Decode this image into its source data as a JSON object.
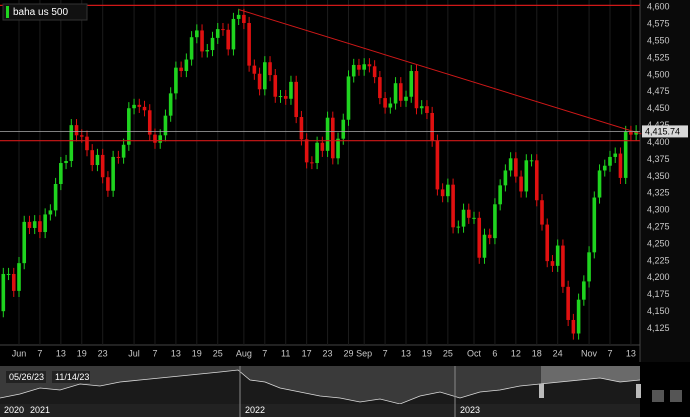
{
  "chart_data": {
    "type": "candlestick",
    "series": [
      {
        "name": "baha us 500",
        "up_color": "#1fd41f",
        "down_color": "#e01010",
        "open": [
          4150,
          4205,
          4205,
          4180,
          4221,
          4282,
          4273,
          4283,
          4267,
          4293,
          4299,
          4338,
          4369,
          4372,
          4425,
          4410,
          4408,
          4388,
          4366,
          4381,
          4348,
          4328,
          4378,
          4377,
          4396,
          4450,
          4455,
          4452,
          4447,
          4411,
          4399,
          4410,
          4439,
          4472,
          4510,
          4505,
          4522,
          4555,
          4565,
          4534,
          4536,
          4554,
          4567,
          4566,
          4537,
          4582,
          4588,
          4576,
          4513,
          4501,
          4478,
          4518,
          4499,
          4467,
          4468,
          4464,
          4489,
          4437,
          4404,
          4370,
          4369,
          4399,
          4387,
          4436,
          4376,
          4405,
          4433,
          4497,
          4514,
          4507,
          4515,
          4512,
          4496,
          4465,
          4451,
          4457,
          4487,
          4461,
          4467,
          4505,
          4450,
          4453,
          4443,
          4402,
          4330,
          4320,
          4337,
          4274,
          4275,
          4300,
          4288,
          4288,
          4229,
          4263,
          4258,
          4308,
          4336,
          4358,
          4376,
          4349,
          4327,
          4373,
          4373,
          4314,
          4278,
          4224,
          4217,
          4247,
          4186,
          4137,
          4117,
          4167,
          4194,
          4237,
          4318,
          4358,
          4365,
          4378,
          4383,
          4347,
          4415,
          4411
        ],
        "high": [
          4214,
          4214,
          4214,
          4230,
          4291,
          4291,
          4292,
          4292,
          4302,
          4308,
          4347,
          4378,
          4381,
          4434,
          4434,
          4419,
          4417,
          4397,
          4390,
          4390,
          4357,
          4387,
          4387,
          4405,
          4459,
          4464,
          4464,
          4461,
          4456,
          4420,
          4419,
          4448,
          4481,
          4519,
          4519,
          4531,
          4564,
          4574,
          4574,
          4545,
          4563,
          4576,
          4576,
          4575,
          4591,
          4597,
          4597,
          4585,
          4522,
          4510,
          4527,
          4527,
          4508,
          4477,
          4477,
          4498,
          4498,
          4446,
          4413,
          4379,
          4408,
          4408,
          4445,
          4445,
          4414,
          4442,
          4506,
          4523,
          4523,
          4524,
          4524,
          4521,
          4505,
          4474,
          4466,
          4496,
          4496,
          4476,
          4514,
          4514,
          4462,
          4462,
          4452,
          4411,
          4339,
          4346,
          4346,
          4284,
          4309,
          4309,
          4297,
          4297,
          4272,
          4272,
          4317,
          4345,
          4367,
          4385,
          4385,
          4358,
          4382,
          4382,
          4382,
          4323,
          4287,
          4233,
          4256,
          4256,
          4195,
          4146,
          4176,
          4203,
          4246,
          4327,
          4367,
          4374,
          4387,
          4392,
          4392,
          4424,
          4424,
          4425
        ],
        "low": [
          4141,
          4196,
          4171,
          4171,
          4212,
          4264,
          4264,
          4258,
          4258,
          4284,
          4290,
          4329,
          4360,
          4363,
          4401,
          4399,
          4379,
          4357,
          4357,
          4339,
          4319,
          4319,
          4368,
          4368,
          4387,
          4441,
          4443,
          4438,
          4402,
          4390,
          4390,
          4401,
          4430,
          4463,
          4496,
          4496,
          4513,
          4546,
          4525,
          4525,
          4527,
          4545,
          4557,
          4528,
          4528,
          4573,
          4567,
          4504,
          4492,
          4469,
          4469,
          4490,
          4458,
          4458,
          4455,
          4455,
          4428,
          4395,
          4361,
          4360,
          4360,
          4378,
          4378,
          4367,
          4367,
          4396,
          4424,
          4488,
          4498,
          4498,
          4503,
          4487,
          4456,
          4442,
          4442,
          4448,
          4452,
          4452,
          4458,
          4441,
          4441,
          4434,
          4393,
          4321,
          4311,
          4311,
          4265,
          4265,
          4266,
          4279,
          4279,
          4220,
          4220,
          4249,
          4249,
          4299,
          4327,
          4349,
          4340,
          4318,
          4318,
          4364,
          4305,
          4269,
          4215,
          4208,
          4208,
          4177,
          4128,
          4108,
          4108,
          4158,
          4185,
          4228,
          4309,
          4349,
          4356,
          4369,
          4338,
          4338,
          4402,
          4402
        ],
        "close": [
          4205,
          4205,
          4180,
          4221,
          4282,
          4273,
          4283,
          4267,
          4293,
          4299,
          4338,
          4369,
          4372,
          4425,
          4410,
          4408,
          4388,
          4366,
          4381,
          4348,
          4328,
          4378,
          4377,
          4396,
          4450,
          4455,
          4452,
          4447,
          4411,
          4399,
          4410,
          4439,
          4472,
          4510,
          4505,
          4522,
          4555,
          4565,
          4534,
          4536,
          4554,
          4567,
          4566,
          4537,
          4582,
          4588,
          4576,
          4513,
          4501,
          4478,
          4518,
          4499,
          4467,
          4468,
          4464,
          4489,
          4437,
          4404,
          4370,
          4369,
          4399,
          4387,
          4436,
          4376,
          4405,
          4433,
          4497,
          4514,
          4507,
          4515,
          4512,
          4496,
          4465,
          4451,
          4457,
          4487,
          4461,
          4467,
          4505,
          4450,
          4453,
          4443,
          4402,
          4330,
          4320,
          4337,
          4274,
          4275,
          4300,
          4288,
          4288,
          4229,
          4263,
          4258,
          4308,
          4336,
          4358,
          4376,
          4349,
          4327,
          4373,
          4373,
          4314,
          4278,
          4224,
          4217,
          4247,
          4186,
          4137,
          4117,
          4167,
          4194,
          4237,
          4318,
          4358,
          4365,
          4378,
          4383,
          4347,
          4415,
          4411,
          4416
        ]
      }
    ],
    "categories": [
      null,
      null,
      null,
      "Jun",
      null,
      null,
      null,
      "7",
      null,
      null,
      null,
      "13",
      null,
      null,
      null,
      "19",
      null,
      null,
      null,
      "23",
      null,
      null,
      null,
      null,
      null,
      "Jul",
      null,
      null,
      null,
      "7",
      null,
      null,
      null,
      "13",
      null,
      null,
      null,
      "19",
      null,
      null,
      null,
      "25",
      null,
      null,
      null,
      null,
      "Aug",
      null,
      null,
      null,
      "7",
      null,
      null,
      null,
      "11",
      null,
      null,
      null,
      "17",
      null,
      null,
      null,
      "23",
      null,
      null,
      null,
      "29",
      null,
      null,
      "Sep",
      null,
      null,
      null,
      "7",
      null,
      null,
      null,
      "13",
      null,
      null,
      null,
      "19",
      null,
      null,
      null,
      "25",
      null,
      null,
      null,
      null,
      "Oct",
      null,
      null,
      null,
      "6",
      null,
      null,
      null,
      "12",
      null,
      null,
      null,
      "18",
      null,
      null,
      null,
      "24",
      null,
      null,
      null,
      null,
      null,
      "Nov",
      null,
      null,
      null,
      "7",
      null,
      null,
      null,
      "13",
      null
    ],
    "ylim": [
      4100,
      4610
    ],
    "yticks": [
      {
        "value": 4125,
        "label": "4,125"
      },
      {
        "value": 4150,
        "label": "4,150"
      },
      {
        "value": 4175,
        "label": "4,175"
      },
      {
        "value": 4200,
        "label": "4,200"
      },
      {
        "value": 4225,
        "label": "4,225"
      },
      {
        "value": 4250,
        "label": "4,250"
      },
      {
        "value": 4275,
        "label": "4,275"
      },
      {
        "value": 4300,
        "label": "4,300"
      },
      {
        "value": 4325,
        "label": "4,325"
      },
      {
        "value": 4350,
        "label": "4,350"
      },
      {
        "value": 4375,
        "label": "4,375"
      },
      {
        "value": 4400,
        "label": "4,400"
      },
      {
        "value": 4425,
        "label": "4,425"
      },
      {
        "value": 4450,
        "label": "4,450"
      },
      {
        "value": 4475,
        "label": "4,475"
      },
      {
        "value": 4500,
        "label": "4,500"
      },
      {
        "value": 4525,
        "label": "4,525"
      },
      {
        "value": 4550,
        "label": "4,550"
      },
      {
        "value": 4575,
        "label": "4,575"
      },
      {
        "value": 4600,
        "label": "4,600"
      }
    ],
    "grid": true,
    "hlines": [
      {
        "value": 4602,
        "color": "#d01818"
      },
      {
        "value": 4402,
        "color": "#d01818"
      }
    ],
    "trendline": {
      "color": "#d01818",
      "points": [
        {
          "x": 45,
          "y": 4596
        },
        {
          "x": 122,
          "y": 4412
        }
      ]
    },
    "last_price": {
      "value": 4415.74,
      "label": "4,415.74"
    },
    "navigator": {
      "start": "05/26/23",
      "end": "11/14/23",
      "years": [
        "2020",
        "2021",
        "2022",
        "2023"
      ]
    }
  }
}
